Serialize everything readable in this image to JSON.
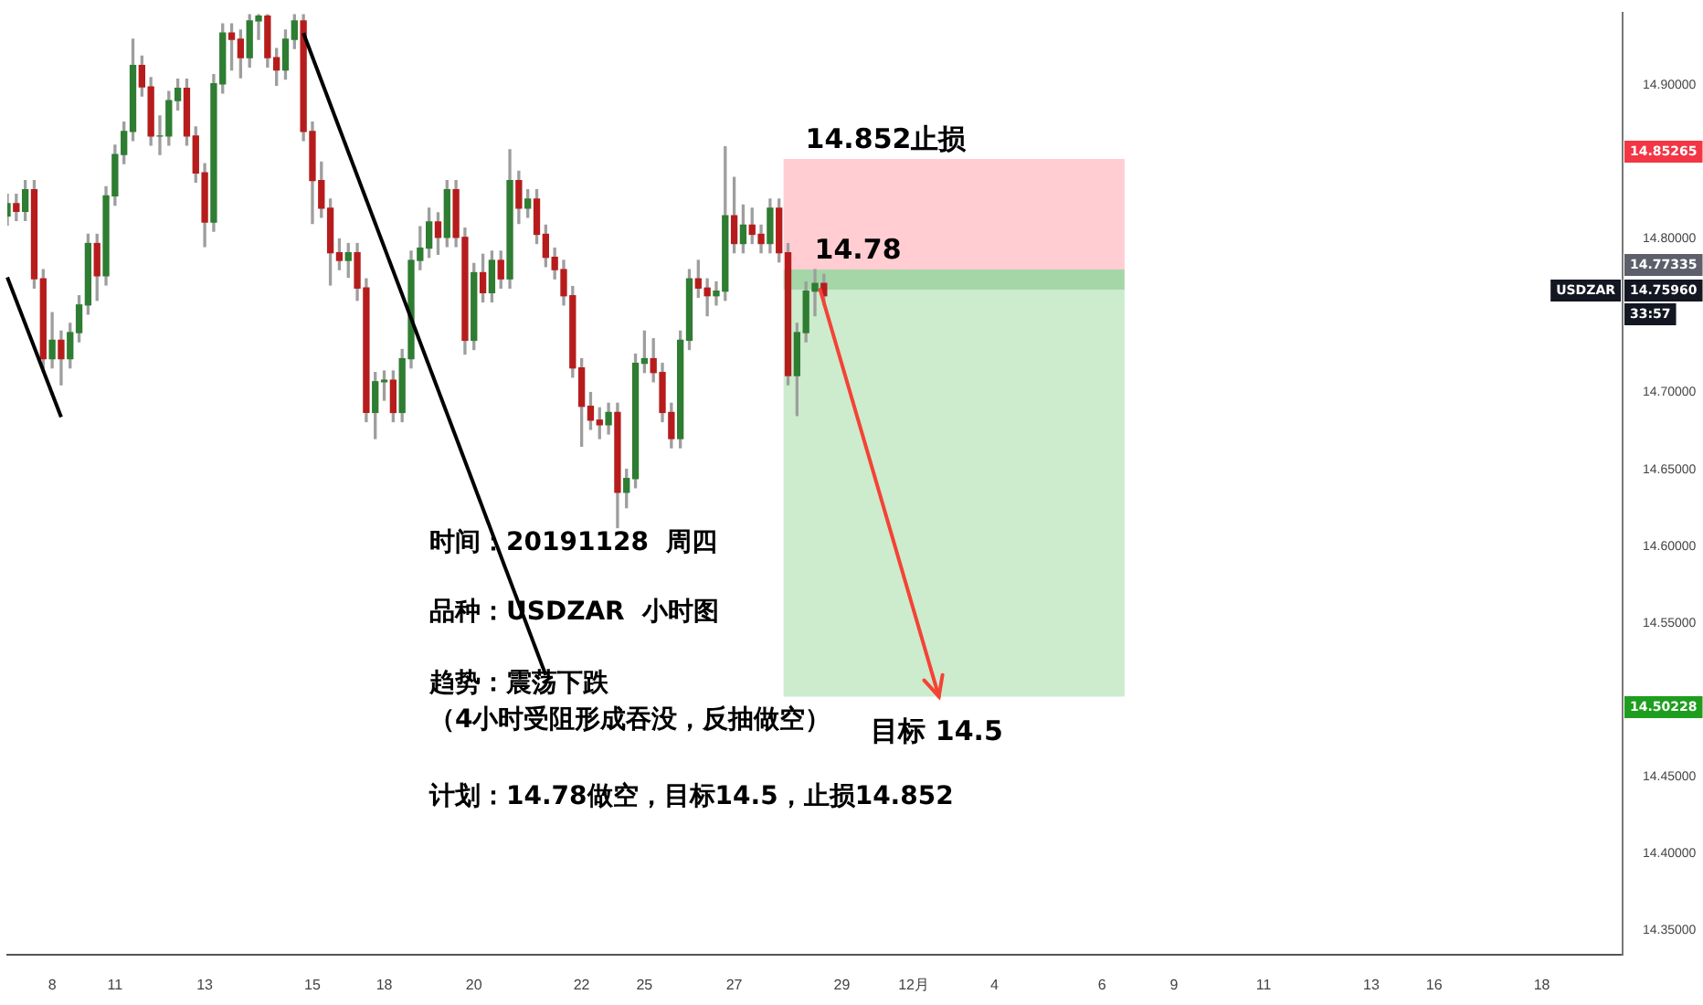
{
  "chart_data": {
    "type": "candlestick",
    "categories": [
      null,
      null,
      null,
      null,
      null,
      "8",
      null,
      null,
      null,
      null,
      null,
      null,
      "11",
      null,
      null,
      null,
      null,
      null,
      null,
      null,
      null,
      null,
      "13",
      null,
      null,
      null,
      null,
      null,
      null,
      null,
      null,
      null,
      null,
      null,
      "15",
      null,
      null,
      null,
      null,
      null,
      null,
      null,
      "18",
      null,
      null,
      null,
      null,
      null,
      null,
      null,
      null,
      null,
      "20",
      null,
      null,
      null,
      null,
      null,
      null,
      null,
      null,
      null,
      null,
      null,
      "22",
      null,
      null,
      null,
      null,
      null,
      null,
      "25",
      null,
      null,
      null,
      null,
      null,
      null,
      null,
      null,
      null,
      "27",
      null,
      null,
      null,
      null,
      null,
      null,
      null,
      null,
      null,
      null,
      null,
      "29",
      null,
      null,
      null,
      null,
      null,
      null,
      null,
      "12月",
      null,
      null,
      null,
      null,
      null,
      null,
      null,
      null,
      "4",
      null,
      null,
      null,
      null,
      null,
      null,
      null,
      null,
      null,
      null,
      null,
      "6",
      null,
      null,
      null,
      null,
      null,
      null,
      null,
      "9",
      null,
      null,
      null,
      null,
      null,
      null,
      null,
      null,
      null,
      "11",
      null,
      null,
      null,
      null,
      null,
      null,
      null,
      null,
      null,
      null,
      null,
      "13",
      null,
      null,
      null,
      null,
      null,
      null,
      "16",
      null,
      null,
      null,
      null,
      null,
      null,
      null,
      null,
      null,
      null,
      null,
      "18",
      null,
      null,
      null,
      null,
      null,
      null,
      null,
      null,
      null
    ],
    "ohlc": [
      [
        14.815,
        14.829,
        14.809,
        14.823
      ],
      [
        14.823,
        14.829,
        14.812,
        14.818
      ],
      [
        14.818,
        14.838,
        14.812,
        14.832
      ],
      [
        14.832,
        14.838,
        14.768,
        14.774
      ],
      [
        14.774,
        14.78,
        14.716,
        14.722
      ],
      [
        14.722,
        14.752,
        14.716,
        14.734
      ],
      [
        14.734,
        14.74,
        14.705,
        14.722
      ],
      [
        14.722,
        14.745,
        14.716,
        14.739
      ],
      [
        14.739,
        14.763,
        14.733,
        14.757
      ],
      [
        14.757,
        14.803,
        14.751,
        14.797
      ],
      [
        14.797,
        14.803,
        14.76,
        14.776
      ],
      [
        14.776,
        14.834,
        14.77,
        14.828
      ],
      [
        14.828,
        14.861,
        14.822,
        14.855
      ],
      [
        14.855,
        14.876,
        14.849,
        14.87
      ],
      [
        14.87,
        14.93,
        14.864,
        14.913
      ],
      [
        14.913,
        14.919,
        14.893,
        14.899
      ],
      [
        14.899,
        14.905,
        14.861,
        14.867
      ],
      [
        14.867,
        14.88,
        14.855,
        14.867
      ],
      [
        14.867,
        14.896,
        14.861,
        14.89
      ],
      [
        14.89,
        14.904,
        14.884,
        14.898
      ],
      [
        14.898,
        14.904,
        14.861,
        14.867
      ],
      [
        14.867,
        14.873,
        14.837,
        14.843
      ],
      [
        14.843,
        14.849,
        14.795,
        14.811
      ],
      [
        14.811,
        14.907,
        14.805,
        14.901
      ],
      [
        14.901,
        14.94,
        14.895,
        14.934
      ],
      [
        14.934,
        14.94,
        14.91,
        14.93
      ],
      [
        14.93,
        14.936,
        14.905,
        14.918
      ],
      [
        14.918,
        14.946,
        14.912,
        14.942
      ],
      [
        14.942,
        14.946,
        14.93,
        14.945
      ],
      [
        14.945,
        14.946,
        14.912,
        14.918
      ],
      [
        14.918,
        14.924,
        14.9,
        14.91
      ],
      [
        14.91,
        14.936,
        14.904,
        14.93
      ],
      [
        14.93,
        14.946,
        14.924,
        14.942
      ],
      [
        14.942,
        14.946,
        14.864,
        14.87
      ],
      [
        14.87,
        14.876,
        14.81,
        14.838
      ],
      [
        14.838,
        14.85,
        14.814,
        14.82
      ],
      [
        14.82,
        14.826,
        14.77,
        14.791
      ],
      [
        14.791,
        14.8,
        14.78,
        14.786
      ],
      [
        14.786,
        14.797,
        14.775,
        14.791
      ],
      [
        14.791,
        14.797,
        14.76,
        14.768
      ],
      [
        14.768,
        14.774,
        14.681,
        14.687
      ],
      [
        14.687,
        14.713,
        14.67,
        14.707
      ],
      [
        14.707,
        14.714,
        14.695,
        14.708
      ],
      [
        14.708,
        14.714,
        14.681,
        14.687
      ],
      [
        14.687,
        14.728,
        14.681,
        14.722
      ],
      [
        14.722,
        14.792,
        14.716,
        14.786
      ],
      [
        14.786,
        14.808,
        14.78,
        14.794
      ],
      [
        14.794,
        14.82,
        14.788,
        14.811
      ],
      [
        14.811,
        14.817,
        14.79,
        14.801
      ],
      [
        14.801,
        14.838,
        14.795,
        14.832
      ],
      [
        14.832,
        14.838,
        14.795,
        14.801
      ],
      [
        14.801,
        14.807,
        14.725,
        14.734
      ],
      [
        14.734,
        14.784,
        14.728,
        14.778
      ],
      [
        14.778,
        14.79,
        14.759,
        14.765
      ],
      [
        14.765,
        14.792,
        14.759,
        14.786
      ],
      [
        14.786,
        14.792,
        14.768,
        14.774
      ],
      [
        14.774,
        14.858,
        14.768,
        14.838
      ],
      [
        14.838,
        14.844,
        14.81,
        14.82
      ],
      [
        14.82,
        14.832,
        14.814,
        14.826
      ],
      [
        14.826,
        14.832,
        14.797,
        14.803
      ],
      [
        14.803,
        14.809,
        14.782,
        14.788
      ],
      [
        14.788,
        14.794,
        14.774,
        14.78
      ],
      [
        14.78,
        14.786,
        14.757,
        14.763
      ],
      [
        14.763,
        14.769,
        14.71,
        14.716
      ],
      [
        14.716,
        14.722,
        14.665,
        14.691
      ],
      [
        14.691,
        14.7,
        14.676,
        14.682
      ],
      [
        14.682,
        14.69,
        14.67,
        14.679
      ],
      [
        14.679,
        14.693,
        14.673,
        14.687
      ],
      [
        14.687,
        14.693,
        14.612,
        14.635
      ],
      [
        14.635,
        14.65,
        14.625,
        14.644
      ],
      [
        14.644,
        14.725,
        14.638,
        14.719
      ],
      [
        14.719,
        14.74,
        14.713,
        14.722
      ],
      [
        14.722,
        14.735,
        14.707,
        14.713
      ],
      [
        14.713,
        14.719,
        14.681,
        14.687
      ],
      [
        14.687,
        14.693,
        14.664,
        14.67
      ],
      [
        14.67,
        14.74,
        14.664,
        14.734
      ],
      [
        14.734,
        14.78,
        14.728,
        14.774
      ],
      [
        14.774,
        14.786,
        14.762,
        14.768
      ],
      [
        14.768,
        14.774,
        14.75,
        14.763
      ],
      [
        14.763,
        14.772,
        14.757,
        14.766
      ],
      [
        14.766,
        14.86,
        14.76,
        14.815
      ],
      [
        14.815,
        14.84,
        14.791,
        14.797
      ],
      [
        14.797,
        14.822,
        14.791,
        14.809
      ],
      [
        14.809,
        14.82,
        14.797,
        14.803
      ],
      [
        14.803,
        14.809,
        14.791,
        14.797
      ],
      [
        14.797,
        14.826,
        14.791,
        14.82
      ],
      [
        14.82,
        14.826,
        14.785,
        14.791
      ],
      [
        14.791,
        14.797,
        14.705,
        14.711
      ],
      [
        14.711,
        14.745,
        14.685,
        14.739
      ],
      [
        14.739,
        14.772,
        14.733,
        14.766
      ],
      [
        14.766,
        14.78,
        14.75,
        14.771
      ],
      [
        14.771,
        14.777,
        14.757,
        14.763
      ],
      null,
      null,
      null,
      null,
      null,
      null,
      null,
      null,
      null,
      null,
      null,
      null,
      null,
      null,
      null,
      null,
      null,
      null,
      null,
      null,
      null,
      null,
      null,
      null,
      null,
      null,
      null,
      null,
      null,
      null,
      null,
      null,
      null,
      null,
      null,
      null,
      null,
      null,
      null,
      null,
      null,
      null,
      null,
      null,
      null,
      null,
      null,
      null,
      null,
      null,
      null,
      null,
      null,
      null,
      null,
      null,
      null,
      null,
      null,
      null,
      null,
      null,
      null,
      null,
      null,
      null,
      null,
      null,
      null,
      null,
      null,
      null,
      null,
      null,
      null,
      null,
      null,
      null,
      null,
      null,
      null,
      null,
      null,
      null,
      null,
      null,
      null,
      null,
      null
    ],
    "series": [
      {
        "type": "line",
        "color": "#000000",
        "values": [
          14.775,
          null,
          null,
          null,
          null,
          null,
          14.684,
          null,
          null,
          null,
          null,
          null,
          null,
          null,
          null,
          null,
          null,
          null,
          null,
          null,
          null,
          null,
          null,
          null,
          null,
          null,
          null,
          null,
          null,
          null,
          null,
          null,
          null,
          null,
          null,
          null,
          null,
          null,
          null,
          null,
          null,
          null,
          null,
          null,
          null,
          null,
          null,
          null,
          null,
          null,
          null,
          null,
          null,
          null,
          null,
          null,
          null,
          null,
          null,
          null,
          null,
          null,
          null,
          null,
          null,
          null,
          null,
          null,
          null,
          null,
          null,
          null,
          null,
          null,
          null,
          null,
          null,
          null,
          null,
          null,
          null,
          null,
          null,
          null,
          null,
          null,
          null,
          null,
          null,
          null,
          null,
          null,
          null,
          null,
          null,
          null,
          null,
          null,
          null,
          null,
          null,
          null,
          null,
          null,
          null,
          null,
          null,
          null,
          null,
          null,
          null,
          null,
          null,
          null,
          null,
          null,
          null,
          null,
          null,
          null,
          null,
          null,
          null,
          null,
          null,
          null,
          null,
          null,
          null,
          null,
          null,
          null,
          null,
          null,
          null,
          null,
          null,
          null,
          null,
          null,
          null,
          null,
          null,
          null,
          null,
          null,
          null,
          null,
          null,
          null,
          null,
          null,
          null,
          null,
          null,
          null,
          null,
          null,
          null,
          null,
          null,
          null,
          null,
          null,
          null,
          null,
          null,
          null,
          null,
          null,
          null,
          null,
          null,
          null,
          null,
          null,
          null,
          null,
          null,
          null,
          null
        ]
      },
      {
        "type": "line",
        "color": "#000000",
        "values": [
          null,
          null,
          null,
          null,
          null,
          null,
          null,
          null,
          null,
          null,
          null,
          null,
          null,
          null,
          null,
          null,
          null,
          null,
          null,
          null,
          null,
          null,
          null,
          null,
          null,
          null,
          null,
          null,
          null,
          null,
          null,
          null,
          null,
          14.934,
          null,
          null,
          null,
          null,
          null,
          null,
          null,
          null,
          null,
          null,
          null,
          null,
          null,
          null,
          null,
          null,
          null,
          null,
          null,
          null,
          null,
          null,
          null,
          null,
          null,
          null,
          14.516,
          null,
          null,
          null,
          null,
          null,
          null,
          null,
          null,
          null,
          null,
          null,
          null,
          null,
          null,
          null,
          null,
          null,
          null,
          null,
          null,
          null,
          null,
          null,
          null,
          null,
          null,
          null,
          null,
          null,
          null,
          null,
          null,
          null,
          null,
          null,
          null,
          null,
          null,
          null,
          null,
          null,
          null,
          null,
          null,
          null,
          null,
          null,
          null,
          null,
          null,
          null,
          null,
          null,
          null,
          null,
          null,
          null,
          null,
          null,
          null,
          null,
          null,
          null,
          null,
          null,
          null,
          null,
          null,
          null,
          null,
          null,
          null,
          null,
          null,
          null,
          null,
          null,
          null,
          null,
          null,
          null,
          null,
          null,
          null,
          null,
          null,
          null,
          null,
          null,
          null,
          null,
          null,
          null,
          null,
          null,
          null,
          null,
          null,
          null,
          null,
          null,
          null,
          null,
          null,
          null,
          null,
          null,
          null,
          null,
          null,
          null,
          null,
          null,
          null,
          null,
          null,
          null,
          null,
          null,
          null
        ]
      }
    ],
    "ylim": [
      14.334,
      14.947
    ],
    "yticks": [
      {
        "value": 14.35,
        "label": "14.35000"
      },
      {
        "value": 14.4,
        "label": "14.40000"
      },
      {
        "value": 14.45,
        "label": "14.45000"
      },
      {
        "value": 14.55,
        "label": "14.55000"
      },
      {
        "value": 14.6,
        "label": "14.60000"
      },
      {
        "value": 14.65,
        "label": "14.65000"
      },
      {
        "value": 14.7,
        "label": "14.70000"
      },
      {
        "value": 14.8,
        "label": "14.80000"
      },
      {
        "value": 14.9,
        "label": "14.90000"
      }
    ],
    "grid": false,
    "bands": [
      {
        "axis": "y",
        "from": 14.78,
        "to": 14.852,
        "color": "#ffcdd2"
      },
      {
        "axis": "y",
        "from": 14.767,
        "to": 14.78,
        "color": "#a5d6a7"
      },
      {
        "axis": "y",
        "from": 14.502,
        "to": 14.767,
        "color": "#cdebcd"
      }
    ],
    "annotations": [
      {
        "text": "14.852止损",
        "y": 14.852
      },
      {
        "text": "14.78",
        "y": 14.78
      },
      {
        "text": "目标 14.5",
        "y": 14.5
      },
      "时间：20191128  周四",
      "品种：USDZAR  小时图",
      "趋势：震荡下跌",
      "（4小时受阻形成吞没，反抽做空）",
      "计划：14.78做空，目标14.5，止损14.852",
      "14.85265",
      "14.77335",
      "14.75960",
      "USDZAR",
      "33:57",
      "14.50228"
    ]
  }
}
